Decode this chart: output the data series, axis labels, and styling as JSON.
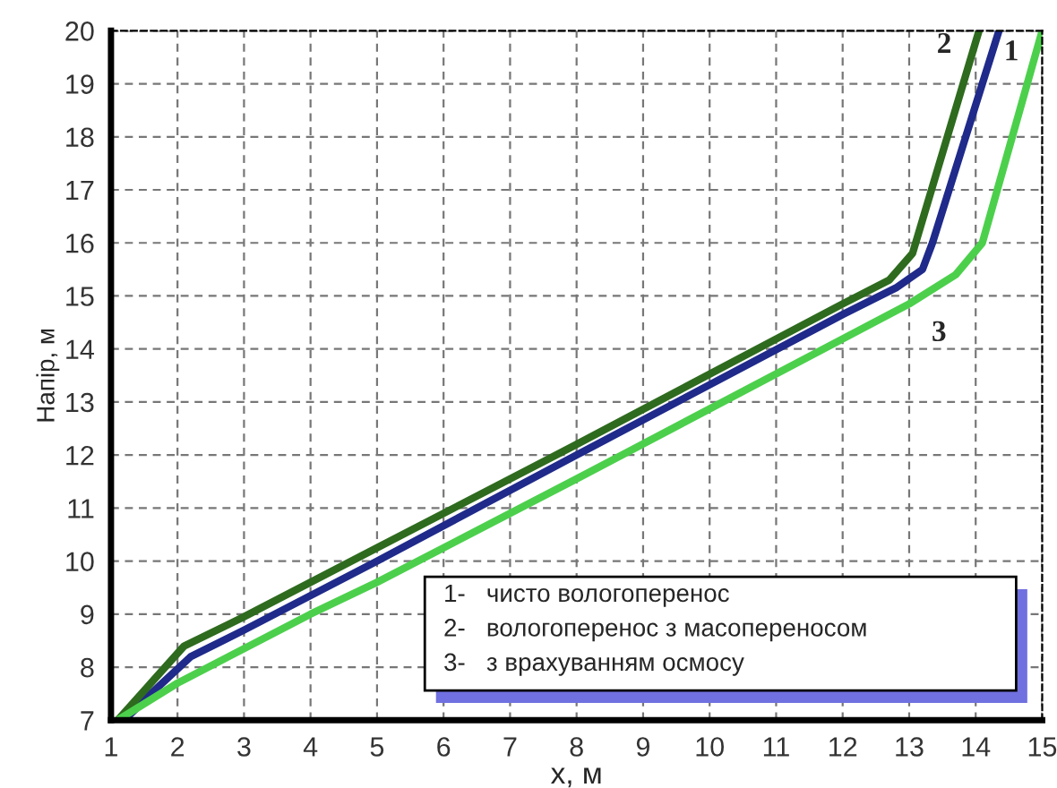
{
  "chart_data": {
    "type": "line",
    "xlabel": "x, м",
    "ylabel": "Напір, м",
    "xlim": [
      1,
      15
    ],
    "ylim": [
      7,
      20
    ],
    "xticks": [
      1,
      2,
      3,
      4,
      5,
      6,
      7,
      8,
      9,
      10,
      11,
      12,
      13,
      14,
      15
    ],
    "yticks": [
      7,
      8,
      9,
      10,
      11,
      12,
      13,
      14,
      15,
      16,
      17,
      18,
      19,
      20
    ],
    "grid": true,
    "legend": false,
    "series": [
      {
        "name": "1",
        "color": "#1f2a8a",
        "x": [
          1.2,
          1.6,
          2.2,
          3,
          5,
          8,
          12,
          12.8,
          13.2,
          13.35,
          14.35
        ],
        "values": [
          7.0,
          7.5,
          8.2,
          8.7,
          10,
          12,
          14.65,
          15.15,
          15.5,
          16,
          20
        ]
      },
      {
        "name": "2",
        "color": "#2e6b1e",
        "x": [
          1.1,
          1.6,
          2.1,
          3,
          5,
          8,
          12,
          12.7,
          13.05,
          14.05
        ],
        "values": [
          7.0,
          7.7,
          8.4,
          8.95,
          10.25,
          12.2,
          14.85,
          15.3,
          15.8,
          20
        ]
      },
      {
        "name": "3",
        "color": "#4cd04c",
        "x": [
          1.1,
          2,
          3,
          4,
          5,
          8,
          13,
          13.7,
          14.1,
          15
        ],
        "values": [
          7.0,
          7.7,
          8.35,
          9,
          9.6,
          11.55,
          14.85,
          15.4,
          16,
          20
        ]
      }
    ],
    "annotations": [
      "1-   чисто вологоперенос",
      "2-   вологоперенос з масопереносом",
      "3-   з врахуванням осмосу"
    ]
  }
}
